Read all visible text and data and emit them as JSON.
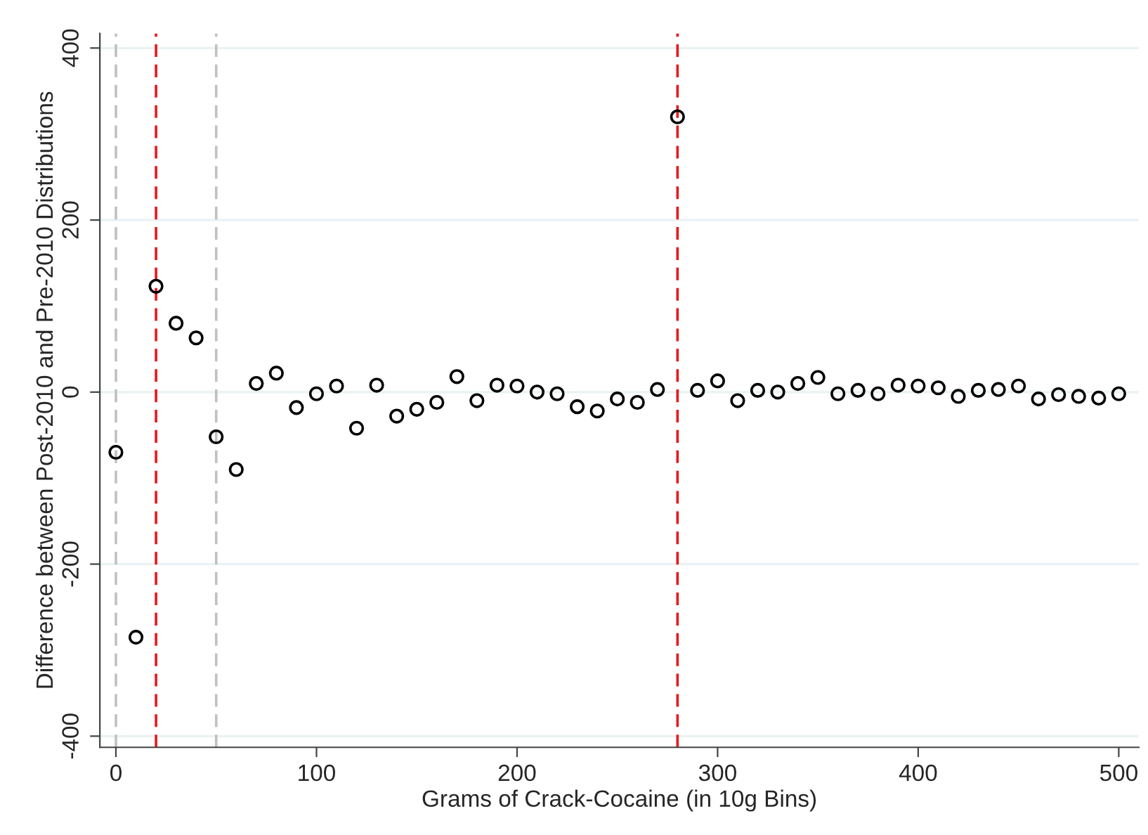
{
  "chart_data": {
    "type": "scatter",
    "xlabel": "Grams of Crack-Cocaine (in 10g Bins)",
    "ylabel": "Difference between Post-2010 and Pre-2010 Distributions",
    "x": [
      0,
      10,
      20,
      30,
      40,
      50,
      60,
      70,
      80,
      90,
      100,
      110,
      120,
      130,
      140,
      150,
      160,
      170,
      180,
      190,
      200,
      210,
      220,
      230,
      240,
      250,
      260,
      270,
      280,
      290,
      300,
      310,
      320,
      330,
      340,
      350,
      360,
      370,
      380,
      390,
      400,
      410,
      420,
      430,
      440,
      450,
      460,
      470,
      480,
      490,
      500
    ],
    "series": [
      {
        "color": "#000000",
        "values": [
          -70,
          -285,
          123,
          80,
          63,
          -52,
          -90,
          10,
          22,
          -18,
          -2,
          7,
          -42,
          8,
          -28,
          -20,
          -12,
          18,
          -10,
          8,
          7,
          0,
          -2,
          -17,
          -22,
          -8,
          -12,
          3,
          320,
          2,
          13,
          -10,
          2,
          0,
          10,
          17,
          -2,
          2,
          -2,
          8,
          7,
          5,
          -5,
          2,
          3,
          7,
          -8,
          -3,
          -5,
          -7,
          -2
        ]
      }
    ],
    "marker": "circle",
    "xlim": [
      -8,
      510
    ],
    "ylim": [
      -413,
      417
    ],
    "xticks": [
      0,
      100,
      200,
      300,
      400,
      500
    ],
    "yticks": [
      -400,
      -200,
      0,
      200,
      400
    ],
    "grid": "y",
    "legend": false,
    "ref_lines": [
      {
        "axis": "x",
        "value": 0,
        "color": "#c0c0c0",
        "line_style": "dashed"
      },
      {
        "axis": "x",
        "value": 20,
        "color": "#e8191b",
        "line_style": "dashed"
      },
      {
        "axis": "x",
        "value": 50,
        "color": "#c0c0c0",
        "line_style": "dashed"
      },
      {
        "axis": "x",
        "value": 280,
        "color": "#e8191b",
        "line_style": "dashed"
      }
    ]
  }
}
